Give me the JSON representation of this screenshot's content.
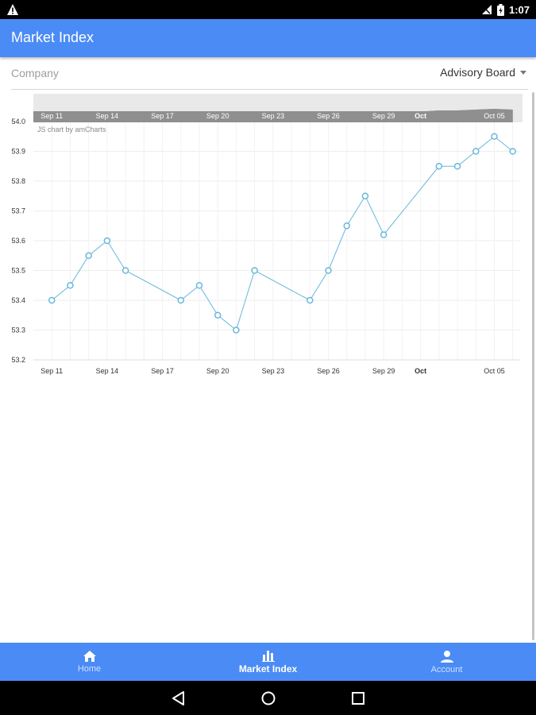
{
  "status_bar": {
    "time": "1:07",
    "icons": [
      "warning-icon",
      "signal-off-icon",
      "battery-icon"
    ]
  },
  "app_bar": {
    "title": "Market Index"
  },
  "filter": {
    "label": "Company",
    "selected": "Advisory Board"
  },
  "chart_credit": "JS chart by amCharts",
  "chart_data": {
    "type": "line",
    "x": [
      "Sep 11",
      "Sep 12",
      "Sep 13",
      "Sep 14",
      "Sep 15",
      "Sep 18",
      "Sep 19",
      "Sep 20",
      "Sep 21",
      "Sep 22",
      "Sep 25",
      "Sep 26",
      "Sep 27",
      "Sep 28",
      "Sep 29",
      "Oct 2",
      "Oct 3",
      "Oct 4",
      "Oct 5",
      "Oct 6"
    ],
    "values": [
      53.4,
      53.45,
      53.55,
      53.6,
      53.5,
      53.4,
      53.45,
      53.35,
      53.3,
      53.5,
      53.4,
      53.5,
      53.65,
      53.75,
      53.62,
      53.85,
      53.85,
      53.9,
      53.95,
      53.9
    ],
    "x_ticks": [
      "Sep 11",
      "Sep 14",
      "Sep 17",
      "Sep 20",
      "Sep 23",
      "Sep 26",
      "Sep 29",
      "Oct",
      "Oct 05"
    ],
    "y_ticks": [
      "54.0",
      "53.9",
      "53.8",
      "53.7",
      "53.6",
      "53.5",
      "53.4",
      "53.3",
      "53.2"
    ],
    "ylim": [
      53.2,
      54.0
    ],
    "xlim": [
      "Sep 10",
      "Oct 6"
    ],
    "grid": true,
    "line_color": "#67b7dc",
    "scrollbar": true
  },
  "bottom_nav": {
    "items": [
      {
        "label": "Home",
        "icon": "home-icon",
        "active": false
      },
      {
        "label": "Market Index",
        "icon": "bar-chart-icon",
        "active": true
      },
      {
        "label": "Account",
        "icon": "account-icon",
        "active": false
      }
    ]
  },
  "colors": {
    "primary": "#4a8bf5",
    "line": "#67b7dc"
  }
}
